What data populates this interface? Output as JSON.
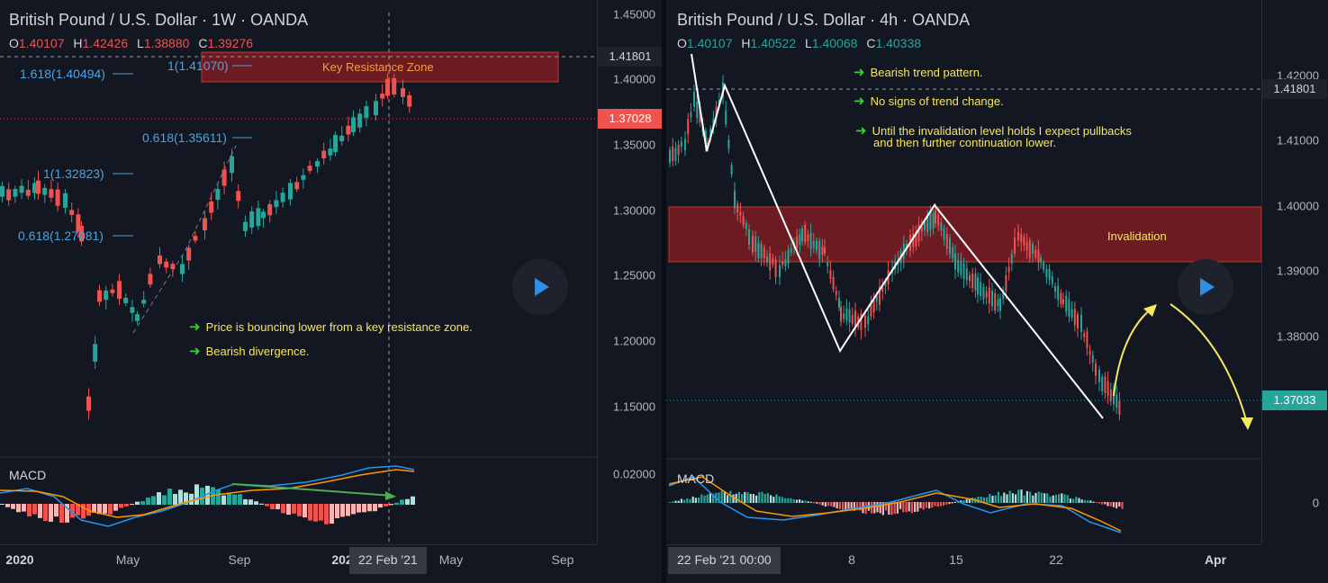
{
  "left": {
    "title": "British Pound / U.S. Dollar · 1W · OANDA",
    "ohlc": {
      "o_key": "O",
      "o": "1.40107",
      "h_key": "H",
      "h": "1.42426",
      "l_key": "L",
      "l": "1.38880",
      "c_key": "C",
      "c": "1.39276",
      "color": "#ef5350"
    },
    "price_ticks": [
      "1.45000",
      "1.40000",
      "1.35000",
      "1.30000",
      "1.25000",
      "1.20000",
      "1.15000",
      "0.02000"
    ],
    "price_tags": {
      "dashed": "1.41801",
      "current": "1.37028"
    },
    "time_ticks": [
      "2020",
      "May",
      "Sep",
      "202",
      "May",
      "Sep"
    ],
    "time_tag": "22 Feb '21",
    "fib_labels": [
      "1.618(1.40494)",
      "1(1.41070)",
      "0.618(1.35611)",
      "1(1.32823)",
      "0.618(1.27081)"
    ],
    "zone_label": "Key Resistance Zone",
    "notes": [
      "Price is bouncing lower from a key resistance zone.",
      "Bearish divergence."
    ],
    "macd_label": "MACD"
  },
  "right": {
    "title": "British Pound / U.S. Dollar · 4h · OANDA",
    "ohlc": {
      "o_key": "O",
      "o": "1.40107",
      "h_key": "H",
      "h": "1.40522",
      "l_key": "L",
      "l": "1.40068",
      "c_key": "C",
      "c": "1.40338",
      "color": "#26a69a"
    },
    "price_ticks": [
      "1.42000",
      "1.41000",
      "1.40000",
      "1.39000",
      "1.38000",
      "0"
    ],
    "price_tags": {
      "dashed": "1.41801",
      "current": "1.37033"
    },
    "time_ticks": [
      "8",
      "15",
      "22",
      "Apr"
    ],
    "time_tag": "22 Feb '21   00:00",
    "zone_label": "Invalidation",
    "notes": [
      "Bearish trend pattern.",
      "No signs of trend change.",
      "Until the invalidation level holds I expect pullbacks",
      "and then further continuation lower."
    ],
    "macd_label": "MACD"
  },
  "colors": {
    "bull": "#26a69a",
    "bear": "#ef5350",
    "zone": "#8b1e24",
    "fib": "#4aa3df",
    "note": "#f5e663",
    "arrow": "#2fd42f"
  },
  "icons": {
    "play": "play-icon",
    "bullet": "green-arrow-icon"
  }
}
